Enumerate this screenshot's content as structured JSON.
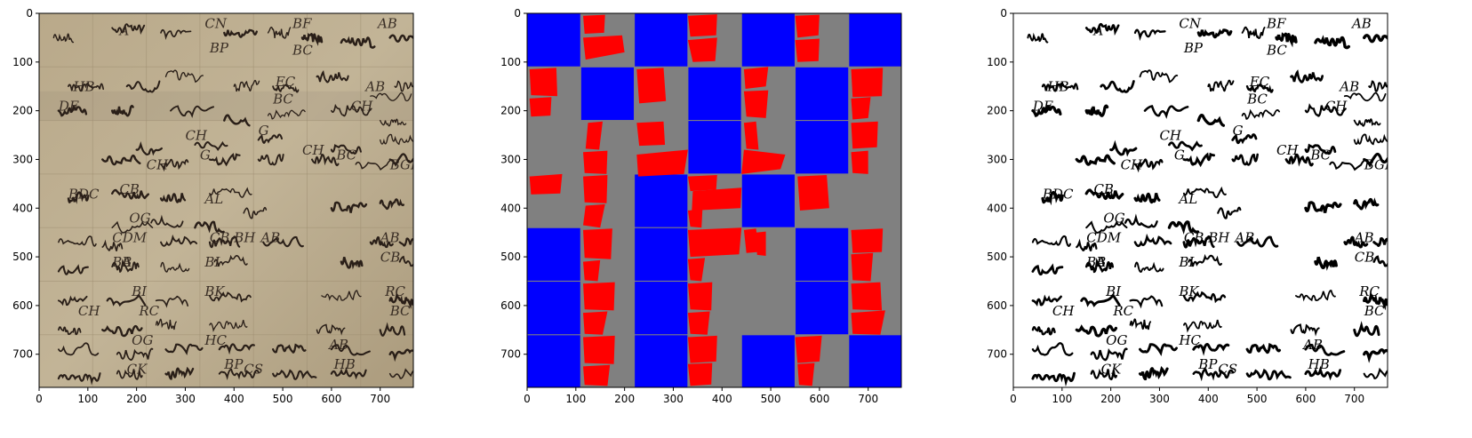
{
  "panels": [
    {
      "id": "original",
      "description": "Photograph of an old handwritten manuscript page in grid-like sections",
      "annotations": [
        "A",
        "BF",
        "BC",
        "CN",
        "BP",
        "AB",
        "HB",
        "DE",
        "EC",
        "BC",
        "CH",
        "AB",
        "CH",
        "G",
        "G",
        "CH",
        "CH",
        "BC",
        "BGBF",
        "BDC",
        "CB",
        "AL",
        "OG",
        "CDM",
        "B",
        "CB",
        "BH",
        "AB",
        "AB",
        "BA",
        "CB",
        "BI",
        "BI",
        "BK",
        "RC",
        "CH",
        "RC",
        "BC",
        "OG",
        "HC",
        "AB",
        "BP",
        "HB",
        "CK",
        "CS"
      ]
    },
    {
      "id": "segmentation",
      "description": "Layout mask: blue squares, red fragment polygons on grey background"
    },
    {
      "id": "binarized",
      "description": "Black-and-white binarized version of the manuscript",
      "annotations": [
        "A",
        "BF",
        "BC",
        "CN",
        "BP",
        "AB",
        "HB",
        "DE",
        "EC",
        "BC",
        "CH",
        "AB",
        "CH",
        "G",
        "G",
        "CH",
        "CH",
        "BC",
        "BGBF",
        "BDC",
        "CB",
        "AL",
        "OG",
        "CDM",
        "B",
        "CB",
        "BH",
        "AB",
        "AB",
        "BA",
        "CB",
        "BI",
        "BI",
        "BK",
        "RC",
        "CH",
        "RC",
        "BC",
        "OG",
        "HC",
        "AB",
        "BP",
        "HB",
        "CK",
        "CS"
      ]
    }
  ],
  "axes": {
    "xlim": [
      0,
      768
    ],
    "ylim": [
      0,
      768
    ],
    "xticks": [
      "0",
      "100",
      "200",
      "300",
      "400",
      "500",
      "600",
      "700"
    ],
    "yticks": [
      "0",
      "100",
      "200",
      "300",
      "400",
      "500",
      "600",
      "700"
    ]
  },
  "colors": {
    "blue": "#0000ff",
    "red": "#ff0000",
    "grey": "#808080",
    "parchment": "#b7a78a",
    "ink": "#2a1f18"
  }
}
